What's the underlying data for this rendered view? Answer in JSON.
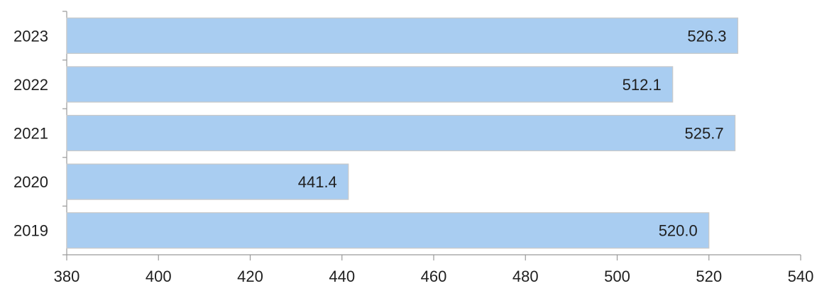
{
  "chart_data": {
    "type": "bar",
    "orientation": "horizontal",
    "categories": [
      "2019",
      "2020",
      "2021",
      "2022",
      "2023"
    ],
    "values": [
      520.0,
      441.4,
      525.7,
      512.1,
      526.3
    ],
    "data_labels": [
      "520.0",
      "441.4",
      "525.7",
      "512.1",
      "526.3"
    ],
    "x_ticks": [
      380,
      400,
      420,
      440,
      460,
      480,
      500,
      520,
      540
    ],
    "xlim": [
      380,
      540
    ],
    "grid": false,
    "legend": "none",
    "bar_color": "#a9cdf1",
    "bar_edge_color": "#c9c9c9",
    "axis_color": "#9a9a9a",
    "text_color": "#1f1f1f"
  }
}
